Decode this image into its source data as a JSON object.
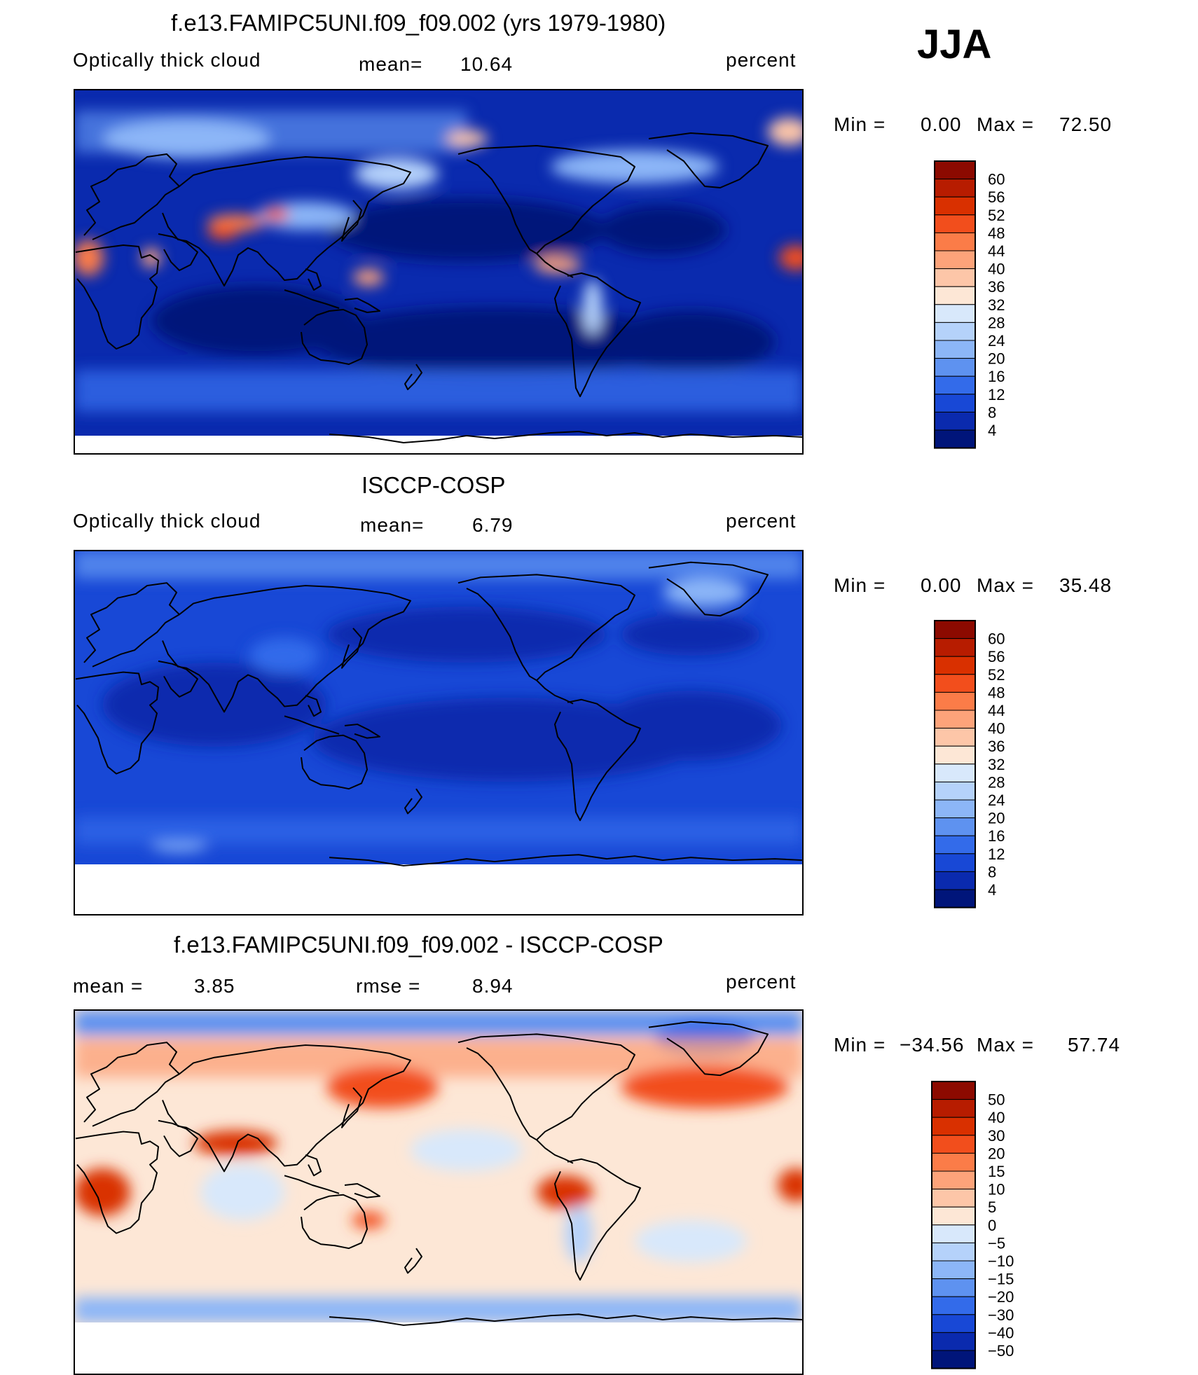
{
  "season": "JJA",
  "colors": {
    "ocean_dark": "#00167a",
    "cloud_blue": "#1b49e0",
    "land_outline": "#000000",
    "antarctica": "#ffffff"
  },
  "panels": [
    {
      "id": "model",
      "title": "f.e13.FAMIPC5UNI.f09_f09.002 (yrs 1979-1980)",
      "left_label": "Optically thick cloud",
      "stat1_label": "mean=",
      "stat1_value": "10.64",
      "stat2_label": "",
      "stat2_value": "",
      "units": "percent",
      "min_label": "Min =",
      "min_value": "0.00",
      "max_label": "Max =",
      "max_value": "72.50",
      "colorbar_labels": [
        "60",
        "56",
        "52",
        "48",
        "44",
        "40",
        "36",
        "32",
        "28",
        "24",
        "20",
        "16",
        "12",
        "8",
        "4"
      ],
      "colorbar_colors": [
        "#8c0a00",
        "#b71c00",
        "#d93000",
        "#f24e1c",
        "#fb7c48",
        "#fda37a",
        "#fdc6a8",
        "#fde7d6",
        "#d8e8fb",
        "#b5d2fa",
        "#8cb6f7",
        "#5e92f0",
        "#336bea",
        "#1848d6",
        "#0a2aae",
        "#00157a"
      ]
    },
    {
      "id": "obs",
      "title": "ISCCP-COSP",
      "left_label": "Optically thick cloud",
      "stat1_label": "mean=",
      "stat1_value": "6.79",
      "stat2_label": "",
      "stat2_value": "",
      "units": "percent",
      "min_label": "Min =",
      "min_value": "0.00",
      "max_label": "Max =",
      "max_value": "35.48",
      "colorbar_labels": [
        "60",
        "56",
        "52",
        "48",
        "44",
        "40",
        "36",
        "32",
        "28",
        "24",
        "20",
        "16",
        "12",
        "8",
        "4"
      ],
      "colorbar_colors": [
        "#8c0a00",
        "#b71c00",
        "#d93000",
        "#f24e1c",
        "#fb7c48",
        "#fda37a",
        "#fdc6a8",
        "#fde7d6",
        "#d8e8fb",
        "#b5d2fa",
        "#8cb6f7",
        "#5e92f0",
        "#336bea",
        "#1848d6",
        "#0a2aae",
        "#00157a"
      ]
    },
    {
      "id": "diff",
      "title": "f.e13.FAMIPC5UNI.f09_f09.002 - ISCCP-COSP",
      "left_label": "",
      "stat1_label": "mean =",
      "stat1_value": "3.85",
      "stat2_label": "rmse =",
      "stat2_value": "8.94",
      "units": "percent",
      "min_label": "Min =",
      "min_value": "−34.56",
      "max_label": "Max =",
      "max_value": "57.74",
      "colorbar_labels": [
        "50",
        "40",
        "30",
        "20",
        "15",
        "10",
        "5",
        "0",
        "−5",
        "−10",
        "−15",
        "−20",
        "−30",
        "−40",
        "−50"
      ],
      "colorbar_colors": [
        "#8c0a00",
        "#b71c00",
        "#d93000",
        "#f24e1c",
        "#fb7c48",
        "#fda37a",
        "#fdc6a8",
        "#fde7d6",
        "#d8e8fb",
        "#b5d2fa",
        "#8cb6f7",
        "#5e92f0",
        "#336bea",
        "#1848d6",
        "#0a2aae",
        "#00157a"
      ]
    }
  ]
}
